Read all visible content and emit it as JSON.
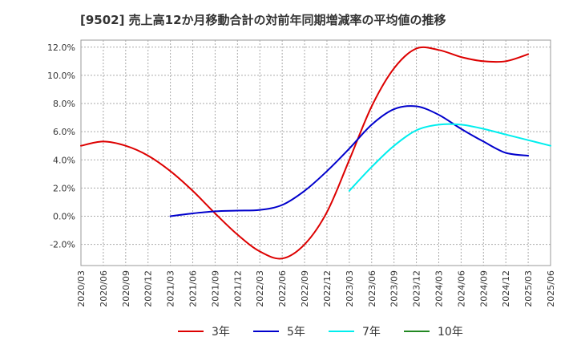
{
  "title": "[9502]  売上高12か月移動合計の対前年同期増減率の平均値の推移",
  "chart_data": {
    "type": "line",
    "title": "[9502]  売上高12か月移動合計の対前年同期増減率の平均値の推移",
    "xlabel": "",
    "ylabel": "",
    "ylim": [
      -3.5,
      12.5
    ],
    "yticks": [
      -2.0,
      0.0,
      2.0,
      4.0,
      6.0,
      8.0,
      10.0,
      12.0
    ],
    "ytick_labels": [
      "-2.0%",
      "0.0%",
      "2.0%",
      "4.0%",
      "6.0%",
      "8.0%",
      "10.0%",
      "12.0%"
    ],
    "x_categories": [
      "2020/03",
      "2020/06",
      "2020/09",
      "2020/12",
      "2021/03",
      "2021/06",
      "2021/09",
      "2021/12",
      "2022/03",
      "2022/06",
      "2022/09",
      "2022/12",
      "2023/03",
      "2023/06",
      "2023/09",
      "2023/12",
      "2024/03",
      "2024/06",
      "2024/09",
      "2024/12",
      "2025/03",
      "2025/06"
    ],
    "grid": true,
    "legend_position": "bottom",
    "series": [
      {
        "name": "3年",
        "color": "#dd0000",
        "start_index": 0,
        "values": [
          5.0,
          5.3,
          5.0,
          4.3,
          3.2,
          1.8,
          0.2,
          -1.3,
          -2.5,
          -3.0,
          -2.0,
          0.3,
          4.0,
          7.8,
          10.5,
          11.9,
          11.8,
          11.3,
          11.0,
          11.0,
          11.5
        ]
      },
      {
        "name": "5年",
        "color": "#0000cc",
        "start_index": 4,
        "values": [
          0.0,
          0.2,
          0.35,
          0.4,
          0.45,
          0.8,
          1.8,
          3.2,
          4.8,
          6.5,
          7.6,
          7.8,
          7.2,
          6.2,
          5.3,
          4.5,
          4.3
        ]
      },
      {
        "name": "7年",
        "color": "#00eeee",
        "start_index": 12,
        "values": [
          1.8,
          3.5,
          5.0,
          6.1,
          6.5,
          6.5,
          6.2,
          5.8,
          5.4,
          5.0
        ]
      },
      {
        "name": "10年",
        "color": "#228822",
        "start_index": 0,
        "values": []
      }
    ]
  }
}
